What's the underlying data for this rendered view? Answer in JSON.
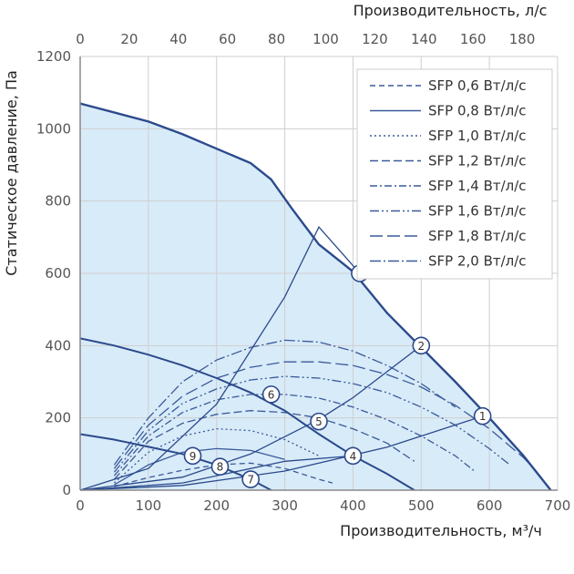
{
  "chart_data": {
    "type": "line",
    "xlabel": "Производительность, м³/ч",
    "x2label": "Производительность, л/с",
    "ylabel": "Статическое давление, Па",
    "xlim": [
      0,
      700
    ],
    "x2lim": [
      0,
      194.44
    ],
    "ylim": [
      0,
      1200
    ],
    "x_ticks": [
      0,
      100,
      200,
      300,
      400,
      500,
      600,
      700
    ],
    "x_tick_labels": [
      "0",
      "100",
      "200",
      "300",
      "400",
      "500",
      "600",
      "700"
    ],
    "x2_ticks": [
      0,
      20,
      40,
      60,
      80,
      100,
      120,
      140,
      160,
      180
    ],
    "x2_tick_labels": [
      "0",
      "20",
      "40",
      "60",
      "80",
      "100",
      "120",
      "140",
      "160",
      "180"
    ],
    "y_ticks": [
      0,
      200,
      400,
      600,
      800,
      1000,
      1200
    ],
    "y_tick_labels": [
      "0",
      "200",
      "400",
      "600",
      "800",
      "1000",
      "1200"
    ],
    "grid": true,
    "legend_position": "top-right",
    "colors": {
      "fan_curve": "#2b4a8c",
      "system_curve": "#2b4a8c",
      "sfp_line": "#3a5a9a",
      "fill": "#d8ebf8",
      "grid": "#cfcfcf",
      "point_stroke": "#2b4a8c"
    },
    "fan_curves": [
      {
        "x": [
          0,
          100,
          150,
          200,
          250,
          280,
          310,
          350,
          400,
          450,
          500,
          550,
          600,
          650,
          690
        ],
        "y": [
          1070,
          1020,
          985,
          945,
          905,
          860,
          780,
          680,
          605,
          490,
          395,
          300,
          200,
          95,
          0
        ]
      },
      {
        "x": [
          0,
          50,
          100,
          150,
          200,
          250,
          300,
          350,
          400,
          450,
          490
        ],
        "y": [
          420,
          400,
          375,
          345,
          310,
          270,
          220,
          155,
          95,
          45,
          0
        ]
      },
      {
        "x": [
          0,
          50,
          100,
          150,
          200,
          250,
          280
        ],
        "y": [
          155,
          140,
          120,
          100,
          70,
          30,
          0
        ]
      }
    ],
    "system_curves": [
      {
        "x": [
          0,
          150,
          300,
          450,
          590
        ],
        "y": [
          0,
          13,
          53,
          119,
          205
        ]
      },
      {
        "x": [
          0,
          150,
          250,
          350,
          400,
          500
        ],
        "y": [
          0,
          36,
          100,
          196,
          256,
          400
        ]
      },
      {
        "x": [
          0,
          100,
          200,
          300,
          350,
          410
        ],
        "y": [
          0,
          60,
          238,
          535,
          728,
          600
        ]
      },
      {
        "x": [
          0,
          150,
          300,
          400
        ],
        "y": [
          0,
          20,
          80,
          95
        ]
      }
    ],
    "sfp_series": [
      {
        "name": "SFP 0,6 Вт/л/с",
        "dash": "6,4",
        "x": [
          50,
          100,
          150,
          200,
          250,
          300,
          350,
          370
        ],
        "y": [
          10,
          35,
          55,
          70,
          75,
          60,
          30,
          20
        ]
      },
      {
        "name": "SFP 0,8 Вт/л/с",
        "dash": "",
        "x": [
          50,
          100,
          150,
          200,
          250,
          300
        ],
        "y": [
          15,
          70,
          105,
          115,
          110,
          85
        ]
      },
      {
        "name": "SFP 1,0 Вт/л/с",
        "dash": "2,3",
        "x": [
          50,
          100,
          150,
          200,
          250,
          300,
          350
        ],
        "y": [
          20,
          105,
          150,
          170,
          165,
          140,
          95
        ]
      },
      {
        "name": "SFP 1,2 Вт/л/с",
        "dash": "9,4",
        "x": [
          50,
          100,
          150,
          200,
          250,
          300,
          350,
          400,
          450,
          490
        ],
        "y": [
          30,
          135,
          185,
          210,
          220,
          215,
          200,
          170,
          130,
          80
        ]
      },
      {
        "name": "SFP 1,4 Вт/л/с",
        "dash": "8,3,2,3",
        "x": [
          50,
          100,
          150,
          200,
          250,
          300,
          350,
          400,
          450,
          500,
          550,
          580
        ],
        "y": [
          40,
          150,
          215,
          250,
          265,
          265,
          255,
          230,
          195,
          150,
          95,
          50
        ]
      },
      {
        "name": "SFP 1,6 Вт/л/с",
        "dash": "10,3,2,3,2,3",
        "x": [
          50,
          100,
          150,
          200,
          250,
          300,
          350,
          400,
          450,
          500,
          550,
          600,
          630
        ],
        "y": [
          50,
          165,
          240,
          280,
          305,
          315,
          310,
          295,
          270,
          230,
          180,
          115,
          70
        ]
      },
      {
        "name": "SFP 1,8 Вт/л/с",
        "dash": "14,5",
        "x": [
          50,
          100,
          150,
          200,
          250,
          300,
          350,
          400,
          450,
          500,
          550,
          600,
          650,
          670
        ],
        "y": [
          60,
          180,
          260,
          310,
          340,
          355,
          355,
          345,
          320,
          285,
          235,
          170,
          90,
          50
        ]
      },
      {
        "name": "SFP 2,0 Вт/л/с",
        "dash": "12,3,2,3",
        "x": [
          50,
          100,
          150,
          200,
          250,
          300,
          350,
          400,
          450,
          500,
          550
        ],
        "y": [
          70,
          200,
          300,
          360,
          395,
          415,
          410,
          385,
          345,
          295,
          230
        ]
      }
    ],
    "points": [
      {
        "label": "1",
        "x": 590,
        "y": 205
      },
      {
        "label": "2",
        "x": 500,
        "y": 400
      },
      {
        "label": "3",
        "x": 410,
        "y": 600
      },
      {
        "label": "4",
        "x": 400,
        "y": 95
      },
      {
        "label": "5",
        "x": 350,
        "y": 190
      },
      {
        "label": "6",
        "x": 280,
        "y": 265
      },
      {
        "label": "7",
        "x": 250,
        "y": 30
      },
      {
        "label": "8",
        "x": 205,
        "y": 65
      },
      {
        "label": "9",
        "x": 165,
        "y": 95
      }
    ]
  }
}
